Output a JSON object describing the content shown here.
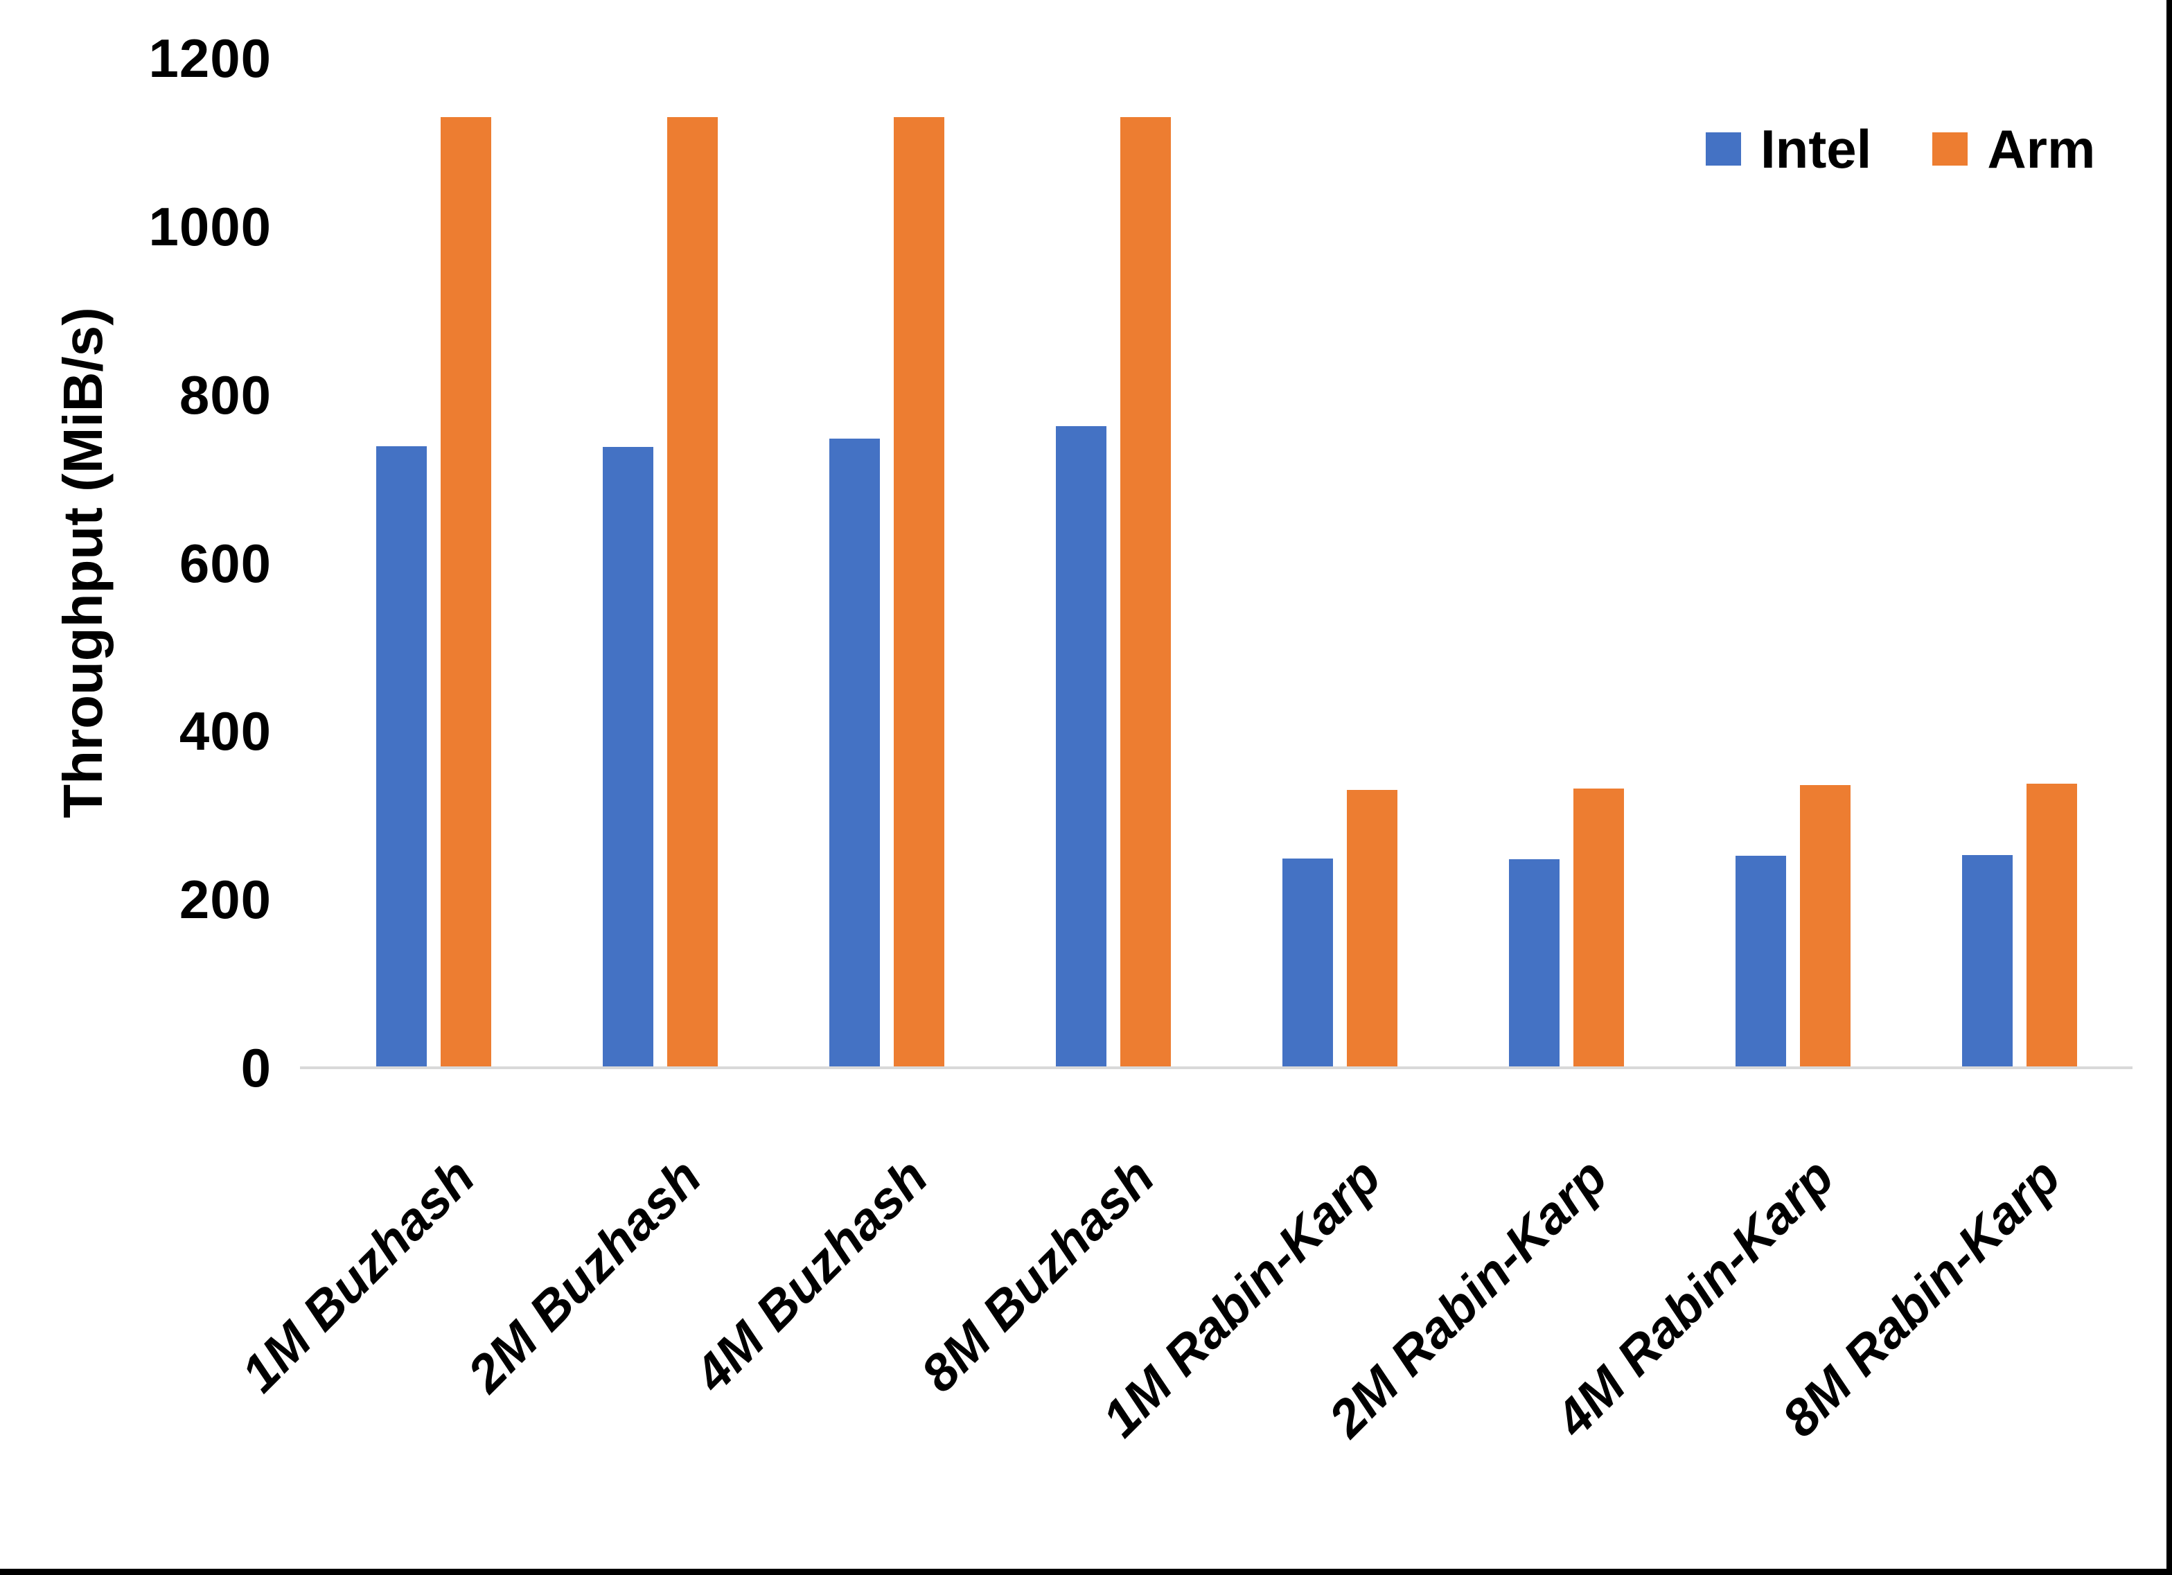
{
  "chart_data": {
    "type": "bar",
    "title": "",
    "xlabel": "",
    "ylabel": "Throughput (MiB/s)",
    "ylim": [
      0,
      1200
    ],
    "yticks": [
      0,
      200,
      400,
      600,
      800,
      1000,
      1200
    ],
    "grid": "off",
    "legend_position": "top-right",
    "categories": [
      "1M Buzhash",
      "2M Buzhash",
      "4M Buzhash",
      "8M Buzhash",
      "1M Rabin-Karp",
      "2M Rabin-Karp",
      "4M Rabin-Karp",
      "8M Rabin-Karp"
    ],
    "series": [
      {
        "name": "Intel",
        "color": "#4472C4",
        "values": [
          739,
          738,
          748,
          763,
          249,
          248,
          252,
          253
        ]
      },
      {
        "name": "Arm",
        "color": "#ED7D31",
        "values": [
          1130,
          1130,
          1130,
          1130,
          330,
          332,
          336,
          338
        ]
      }
    ]
  },
  "colors": {
    "background": "#FFFFFF",
    "axis_line": "#D9D9D9",
    "text": "#000000",
    "frame_border": "#000000"
  }
}
